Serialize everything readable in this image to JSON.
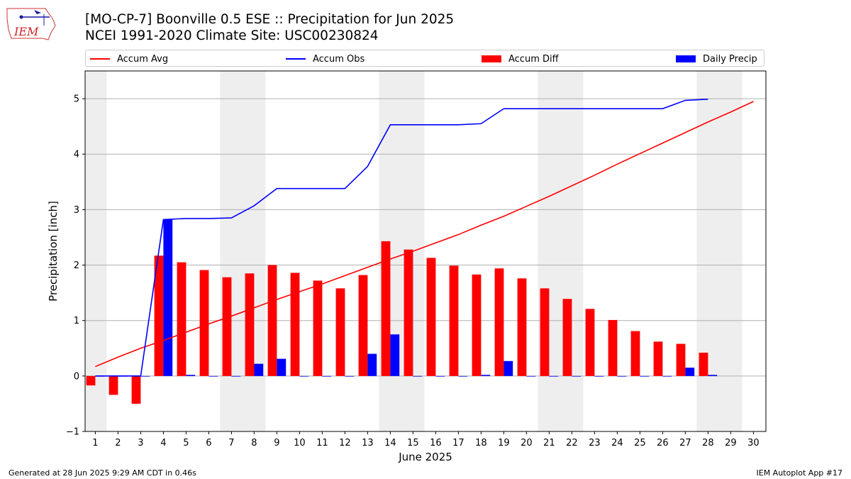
{
  "header": {
    "title_line1": "[MO-CP-7] Boonville 0.5 ESE :: Precipitation for Jun 2025",
    "title_line2": "NCEI 1991-2020 Climate Site: USC00230824",
    "logo_text": "IEM"
  },
  "legend": {
    "placement": "top",
    "items": [
      {
        "label": "Accum Avg",
        "color": "#ff0000",
        "kind": "line"
      },
      {
        "label": "Accum Obs",
        "color": "#0000ff",
        "kind": "line"
      },
      {
        "label": "Accum Diff",
        "color": "#ff0000",
        "kind": "bar"
      },
      {
        "label": "Daily Precip",
        "color": "#0000ff",
        "kind": "bar"
      }
    ]
  },
  "chart_data": {
    "type": "bar",
    "xlabel": "June 2025",
    "ylabel": "Precipitation [inch]",
    "ylim": [
      -1,
      5.5
    ],
    "yticks": [
      "−1",
      "0",
      "1",
      "2",
      "3",
      "4",
      "5"
    ],
    "ytick_values": [
      -1,
      0,
      1,
      2,
      3,
      4,
      5
    ],
    "grid": true,
    "weekend_shading": [
      [
        1,
        1
      ],
      [
        7,
        8
      ],
      [
        14,
        15
      ],
      [
        21,
        22
      ],
      [
        28,
        29
      ]
    ],
    "days": [
      "1",
      "2",
      "3",
      "4",
      "5",
      "6",
      "7",
      "8",
      "9",
      "10",
      "11",
      "12",
      "13",
      "14",
      "15",
      "16",
      "17",
      "18",
      "19",
      "20",
      "21",
      "22",
      "23",
      "24",
      "25",
      "26",
      "27",
      "28",
      "29",
      "30"
    ],
    "series": [
      {
        "name": "Accum Avg",
        "kind": "line",
        "color": "#ff0000",
        "values": [
          0.17,
          0.34,
          0.5,
          0.64,
          0.79,
          0.94,
          1.08,
          1.23,
          1.38,
          1.52,
          1.66,
          1.81,
          1.96,
          2.11,
          2.25,
          2.4,
          2.55,
          2.72,
          2.88,
          3.06,
          3.24,
          3.43,
          3.62,
          3.82,
          4.01,
          4.2,
          4.39,
          4.58,
          4.76,
          4.95
        ]
      },
      {
        "name": "Accum Obs",
        "kind": "line",
        "color": "#0000ff",
        "values": [
          0.0,
          0.0,
          0.0,
          2.82,
          2.84,
          2.84,
          2.85,
          3.07,
          3.38,
          3.38,
          3.38,
          3.38,
          3.78,
          4.53,
          4.53,
          4.53,
          4.53,
          4.55,
          4.82,
          4.82,
          4.82,
          4.82,
          4.82,
          4.82,
          4.82,
          4.82,
          4.97,
          4.99
        ]
      },
      {
        "name": "Accum Diff",
        "kind": "bar",
        "color": "#ff0000",
        "values": [
          -0.17,
          -0.34,
          -0.5,
          2.17,
          2.05,
          1.91,
          1.78,
          1.85,
          2.0,
          1.86,
          1.72,
          1.58,
          1.82,
          2.43,
          2.28,
          2.13,
          1.99,
          1.83,
          1.94,
          1.76,
          1.58,
          1.39,
          1.21,
          1.01,
          0.81,
          0.62,
          0.58,
          0.42
        ]
      },
      {
        "name": "Daily Precip",
        "kind": "bar",
        "color": "#0000ff",
        "values": [
          0.0,
          0.0,
          0.0,
          2.82,
          0.02,
          0.0,
          0.0,
          0.22,
          0.31,
          0.0,
          0.0,
          0.0,
          0.4,
          0.75,
          0.0,
          0.0,
          0.0,
          0.02,
          0.27,
          0.0,
          0.0,
          0.0,
          0.0,
          0.0,
          0.0,
          0.0,
          0.15,
          0.02
        ]
      }
    ]
  },
  "footer": {
    "left": "Generated at 28 Jun 2025 9:29 AM CDT in 0.46s",
    "right": "IEM Autoplot App #17"
  }
}
